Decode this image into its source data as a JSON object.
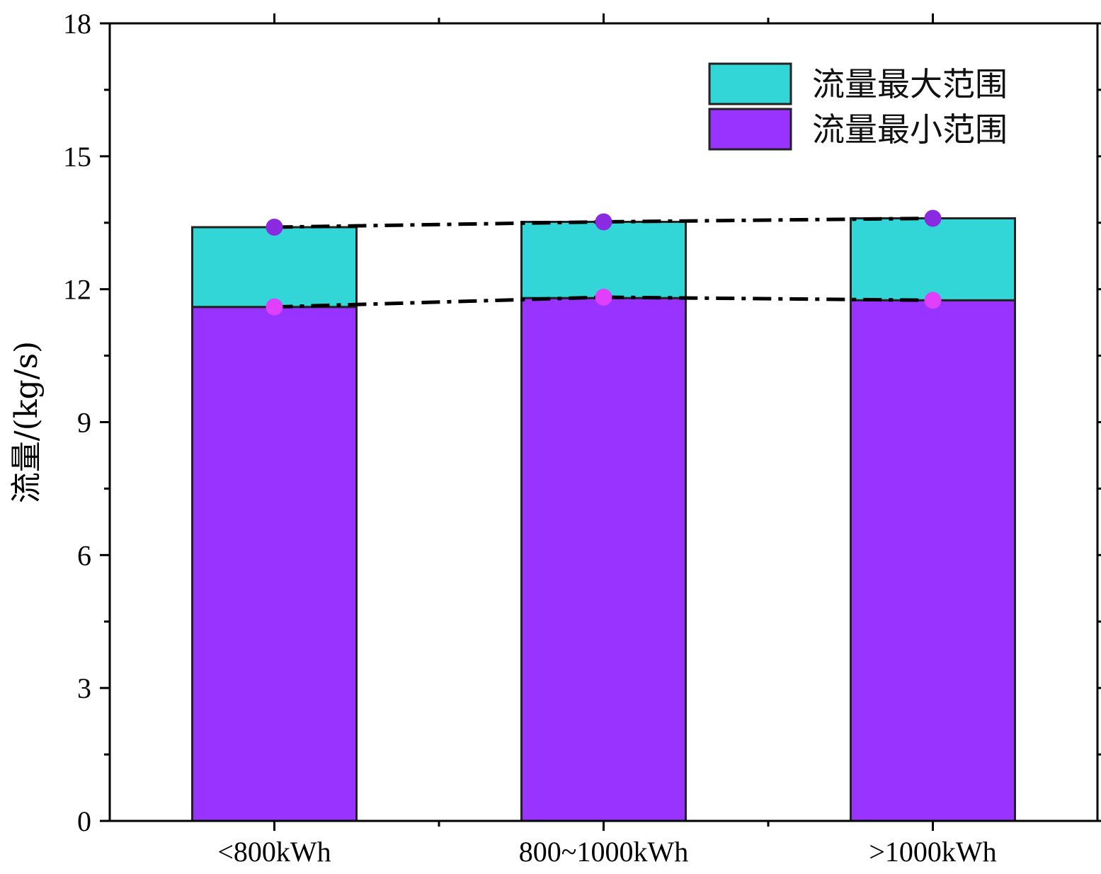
{
  "chart_data": {
    "type": "bar",
    "stacked": true,
    "categories": [
      "<800kWh",
      "800~1000kWh",
      ">1000kWh"
    ],
    "series": [
      {
        "name": "流量最小范围",
        "values": [
          11.6,
          11.8,
          11.75
        ],
        "color": "#9933ff"
      },
      {
        "name": "流量最大范围",
        "values": [
          1.8,
          1.72,
          1.85
        ],
        "color": "#33d6d6"
      }
    ],
    "trend_lines": [
      {
        "values": [
          13.4,
          13.52,
          13.6
        ],
        "marker_color": "#8a2be2",
        "style": "dash-dot"
      },
      {
        "values": [
          11.6,
          11.82,
          11.75
        ],
        "marker_color": "#e040fb",
        "style": "dash-dot"
      }
    ],
    "xlabel": "",
    "ylabel": "流量/(kg/s)",
    "ylim": [
      0,
      18
    ],
    "yticks": [
      0,
      3,
      6,
      9,
      12,
      15,
      18
    ],
    "legend_position": "top-right",
    "grid": false
  }
}
